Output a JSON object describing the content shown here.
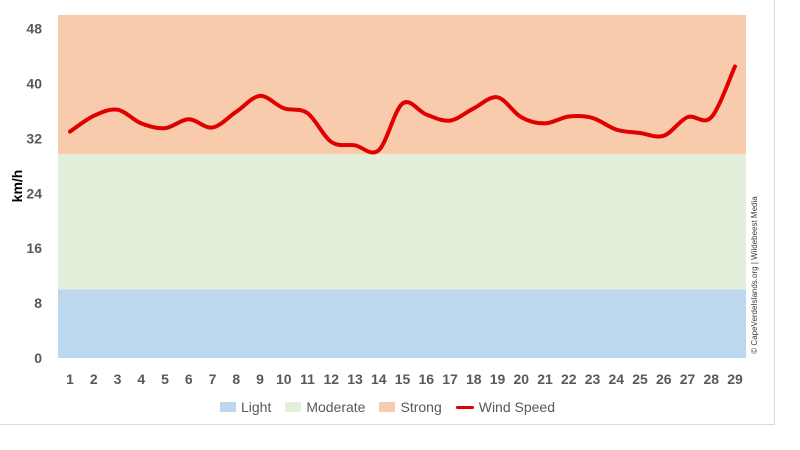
{
  "chart_data": {
    "type": "line",
    "title": "",
    "xlabel": "",
    "ylabel": "km/h",
    "categories": [
      "1",
      "2",
      "3",
      "4",
      "5",
      "6",
      "7",
      "8",
      "9",
      "10",
      "11",
      "12",
      "13",
      "14",
      "15",
      "16",
      "17",
      "18",
      "19",
      "20",
      "21",
      "22",
      "23",
      "24",
      "25",
      "26",
      "27",
      "28",
      "29"
    ],
    "series": [
      {
        "name": "Wind Speed",
        "color": "#e00000",
        "values": [
          33,
          35.3,
          36.2,
          34.2,
          33.5,
          34.8,
          33.6,
          35.9,
          38.2,
          36.4,
          35.7,
          31.5,
          31,
          30.3,
          37.1,
          35.5,
          34.6,
          36.4,
          38,
          35.1,
          34.2,
          35.2,
          35,
          33.3,
          32.8,
          32.4,
          35.1,
          35.1,
          42.5
        ]
      }
    ],
    "ylim": [
      0,
      50
    ],
    "yticks": [
      0,
      8,
      16,
      24,
      32,
      40,
      48
    ],
    "bands": [
      {
        "name": "Light",
        "from": 0,
        "to": 10,
        "color": "#bdd7ee"
      },
      {
        "name": "Moderate",
        "from": 10,
        "to": 29.7,
        "color": "#e2efda"
      },
      {
        "name": "Strong",
        "from": 29.7,
        "to": 50,
        "color": "#f8cbad"
      }
    ],
    "legend": [
      "Light",
      "Moderate",
      "Strong",
      "Wind Speed"
    ],
    "legend_position": "bottom",
    "grid": false,
    "credit": "© CapeVerdeIslands.org | Wildebeest Media"
  }
}
